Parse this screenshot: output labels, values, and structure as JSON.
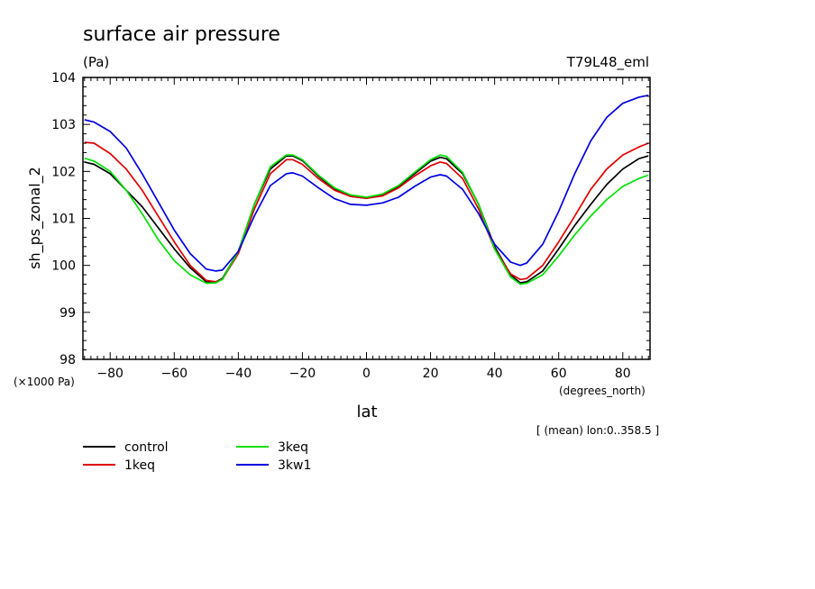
{
  "chart_data": {
    "type": "line",
    "title": "surface air pressure",
    "units": "(Pa)",
    "experiment": "T79L48_eml",
    "ylabel": "sh_ps_zonal_2",
    "xlabel": "lat",
    "x_units": "(degrees_north)",
    "y_scale_note": "(×1000 Pa)",
    "mean_note": "[ (mean) lon:0..358.5 ]",
    "xlim": [
      -88.5,
      88.5
    ],
    "ylim": [
      98,
      104
    ],
    "x_ticks": [
      -80,
      -60,
      -40,
      -20,
      0,
      20,
      40,
      60,
      80
    ],
    "y_ticks": [
      98,
      99,
      100,
      101,
      102,
      103,
      104
    ],
    "grid": false,
    "x": [
      -88,
      -85,
      -80,
      -75,
      -70,
      -65,
      -60,
      -55,
      -50,
      -47,
      -45,
      -40,
      -35,
      -30,
      -25,
      -23,
      -20,
      -15,
      -10,
      -5,
      0,
      5,
      10,
      15,
      20,
      23,
      25,
      30,
      35,
      40,
      45,
      48,
      50,
      55,
      60,
      65,
      70,
      75,
      80,
      85,
      88
    ],
    "series": [
      {
        "name": "control",
        "color": "#000000",
        "values": [
          102.2,
          102.15,
          101.95,
          101.6,
          101.25,
          100.8,
          100.35,
          99.95,
          99.65,
          99.65,
          99.72,
          100.3,
          101.3,
          102.05,
          102.33,
          102.33,
          102.23,
          101.9,
          101.62,
          101.47,
          101.43,
          101.5,
          101.68,
          101.95,
          102.22,
          102.3,
          102.27,
          101.95,
          101.3,
          100.4,
          99.8,
          99.63,
          99.65,
          99.88,
          100.35,
          100.85,
          101.3,
          101.72,
          102.05,
          102.27,
          102.33
        ]
      },
      {
        "name": "1keq",
        "color": "#e00000",
        "values": [
          102.62,
          102.6,
          102.38,
          102.05,
          101.6,
          101.05,
          100.5,
          100.0,
          99.68,
          99.65,
          99.7,
          100.25,
          101.2,
          101.95,
          102.25,
          102.25,
          102.15,
          101.85,
          101.6,
          101.47,
          101.43,
          101.48,
          101.65,
          101.9,
          102.12,
          102.2,
          102.17,
          101.85,
          101.2,
          100.35,
          99.82,
          99.7,
          99.72,
          100.0,
          100.5,
          101.05,
          101.62,
          102.05,
          102.35,
          102.52,
          102.6
        ]
      },
      {
        "name": "3keq",
        "color": "#00e000",
        "values": [
          102.28,
          102.22,
          102.0,
          101.6,
          101.1,
          100.55,
          100.1,
          99.8,
          99.62,
          99.63,
          99.7,
          100.3,
          101.3,
          102.1,
          102.35,
          102.35,
          102.25,
          101.92,
          101.65,
          101.5,
          101.45,
          101.52,
          101.7,
          101.98,
          102.25,
          102.35,
          102.32,
          101.98,
          101.3,
          100.35,
          99.75,
          99.6,
          99.62,
          99.8,
          100.2,
          100.65,
          101.05,
          101.4,
          101.68,
          101.85,
          101.92
        ]
      },
      {
        "name": "3kw1",
        "color": "#0000e0",
        "values": [
          103.1,
          103.05,
          102.85,
          102.5,
          101.95,
          101.35,
          100.75,
          100.25,
          99.92,
          99.88,
          99.9,
          100.3,
          101.05,
          101.7,
          101.95,
          101.97,
          101.9,
          101.65,
          101.42,
          101.3,
          101.28,
          101.33,
          101.45,
          101.68,
          101.88,
          101.93,
          101.9,
          101.62,
          101.1,
          100.45,
          100.07,
          100.0,
          100.05,
          100.45,
          101.15,
          101.95,
          102.65,
          103.15,
          103.45,
          103.58,
          103.62
        ]
      }
    ],
    "legend_position": "bottom-left"
  }
}
